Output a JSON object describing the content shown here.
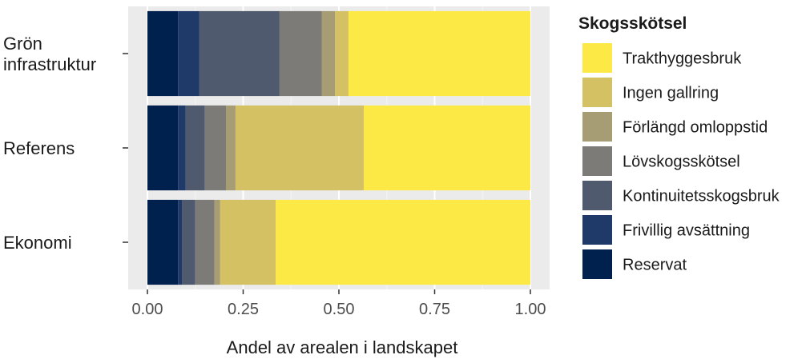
{
  "chart_data": {
    "type": "bar",
    "orientation": "horizontal",
    "stacked": true,
    "categories": [
      "Grön infrastruktur",
      "Referens",
      "Ekonomi"
    ],
    "series": [
      {
        "name": "Reservat",
        "color": "#00204d",
        "values": [
          0.08,
          0.08,
          0.08
        ]
      },
      {
        "name": "Frivillig avsättning",
        "color": "#1f3a68",
        "values": [
          0.055,
          0.02,
          0.01
        ]
      },
      {
        "name": "Kontinuitetsskogsbruk",
        "color": "#4f5a6e",
        "values": [
          0.21,
          0.05,
          0.035
        ]
      },
      {
        "name": "Lövskogsskötsel",
        "color": "#7c7b78",
        "values": [
          0.11,
          0.055,
          0.05
        ]
      },
      {
        "name": "Förlängd omloppstid",
        "color": "#a69d75",
        "values": [
          0.035,
          0.025,
          0.015
        ]
      },
      {
        "name": "Ingen gallring",
        "color": "#d3c164",
        "values": [
          0.035,
          0.335,
          0.145
        ]
      },
      {
        "name": "Trakthyggesbruk",
        "color": "#fde945",
        "values": [
          0.475,
          0.435,
          0.665
        ]
      }
    ],
    "legend_order": [
      "Trakthyggesbruk",
      "Ingen gallring",
      "Förlängd omloppstid",
      "Lövskogsskötsel",
      "Kontinuitetsskogsbruk",
      "Frivillig avsättning",
      "Reservat"
    ],
    "xlim": [
      0,
      1
    ],
    "xticks": [
      "0.00",
      "0.25",
      "0.50",
      "0.75",
      "1.00"
    ],
    "xlabel": "Andel av arealen i landskapet",
    "ylabel": "",
    "legend_title": "Skogsskötsel",
    "legend_position": "right",
    "grid": true
  }
}
